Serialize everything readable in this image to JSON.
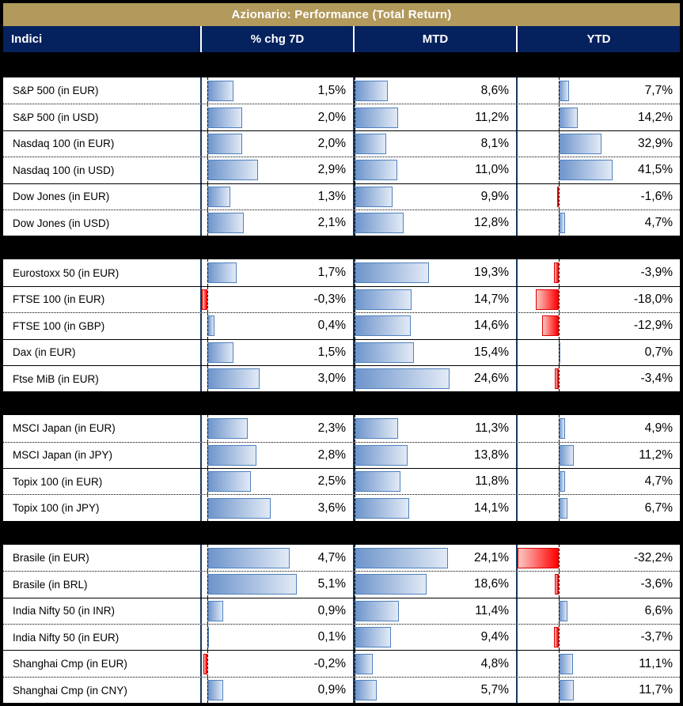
{
  "colors": {
    "title_bar_bg": "#B2995C",
    "title_text": "#FFFFFF",
    "header_bg": "#05215E",
    "header_text": "#FFFFFF",
    "column_divider": "#17375E",
    "bar_positive_fill": "#6D94CB",
    "bar_positive_border": "#4F81BD",
    "bar_negative_fill": "#FF0000",
    "bar_negative_border": "#DE0000"
  },
  "chart_data": {
    "type": "bar",
    "title": "Azionario: Performance (Total Return)",
    "row_header": "Indici",
    "columns": [
      {
        "key": "chg7d",
        "label": "% chg 7D"
      },
      {
        "key": "mtd",
        "label": "MTD"
      },
      {
        "key": "ytd",
        "label": "YTD"
      }
    ],
    "value_format": "one decimal, comma separator, percent suffix",
    "bar_scale": "per column: min..max across all rows, zero axis dashed",
    "groups": [
      {
        "rows": [
          {
            "label": "S&P 500 (in EUR)",
            "chg7d": 1.5,
            "mtd": 8.6,
            "ytd": 7.7
          },
          {
            "label": "S&P 500 (in USD)",
            "chg7d": 2.0,
            "mtd": 11.2,
            "ytd": 14.2
          },
          {
            "label": "Nasdaq 100 (in EUR)",
            "chg7d": 2.0,
            "mtd": 8.1,
            "ytd": 32.9
          },
          {
            "label": "Nasdaq 100 (in USD)",
            "chg7d": 2.9,
            "mtd": 11.0,
            "ytd": 41.5
          },
          {
            "label": "Dow Jones (in EUR)",
            "chg7d": 1.3,
            "mtd": 9.9,
            "ytd": -1.6
          },
          {
            "label": "Dow Jones (in USD)",
            "chg7d": 2.1,
            "mtd": 12.8,
            "ytd": 4.7
          }
        ]
      },
      {
        "rows": [
          {
            "label": "Eurostoxx 50 (in EUR)",
            "chg7d": 1.7,
            "mtd": 19.3,
            "ytd": -3.9
          },
          {
            "label": "FTSE 100 (in EUR)",
            "chg7d": -0.3,
            "mtd": 14.7,
            "ytd": -18.0
          },
          {
            "label": "FTSE 100 (in GBP)",
            "chg7d": 0.4,
            "mtd": 14.6,
            "ytd": -12.9
          },
          {
            "label": "Dax (in EUR)",
            "chg7d": 1.5,
            "mtd": 15.4,
            "ytd": 0.7
          },
          {
            "label": "Ftse MiB (in EUR)",
            "chg7d": 3.0,
            "mtd": 24.6,
            "ytd": -3.4
          }
        ]
      },
      {
        "rows": [
          {
            "label": "MSCI Japan (in EUR)",
            "chg7d": 2.3,
            "mtd": 11.3,
            "ytd": 4.9
          },
          {
            "label": "MSCI Japan (in JPY)",
            "chg7d": 2.8,
            "mtd": 13.8,
            "ytd": 11.2
          },
          {
            "label": "Topix 100 (in EUR)",
            "chg7d": 2.5,
            "mtd": 11.8,
            "ytd": 4.7
          },
          {
            "label": "Topix 100 (in JPY)",
            "chg7d": 3.6,
            "mtd": 14.1,
            "ytd": 6.7
          }
        ]
      },
      {
        "rows": [
          {
            "label": "Brasile (in EUR)",
            "chg7d": 4.7,
            "mtd": 24.1,
            "ytd": -32.2
          },
          {
            "label": "Brasile (in BRL)",
            "chg7d": 5.1,
            "mtd": 18.6,
            "ytd": -3.6
          },
          {
            "label": "India Nifty 50 (in INR)",
            "chg7d": 0.9,
            "mtd": 11.4,
            "ytd": 6.6
          },
          {
            "label": "India Nifty 50 (in EUR)",
            "chg7d": 0.1,
            "mtd": 9.4,
            "ytd": -3.7
          },
          {
            "label": "Shanghai Cmp (in EUR)",
            "chg7d": -0.2,
            "mtd": 4.8,
            "ytd": 11.1
          },
          {
            "label": "Shanghai Cmp (in CNY)",
            "chg7d": 0.9,
            "mtd": 5.7,
            "ytd": 11.7
          }
        ]
      }
    ]
  }
}
